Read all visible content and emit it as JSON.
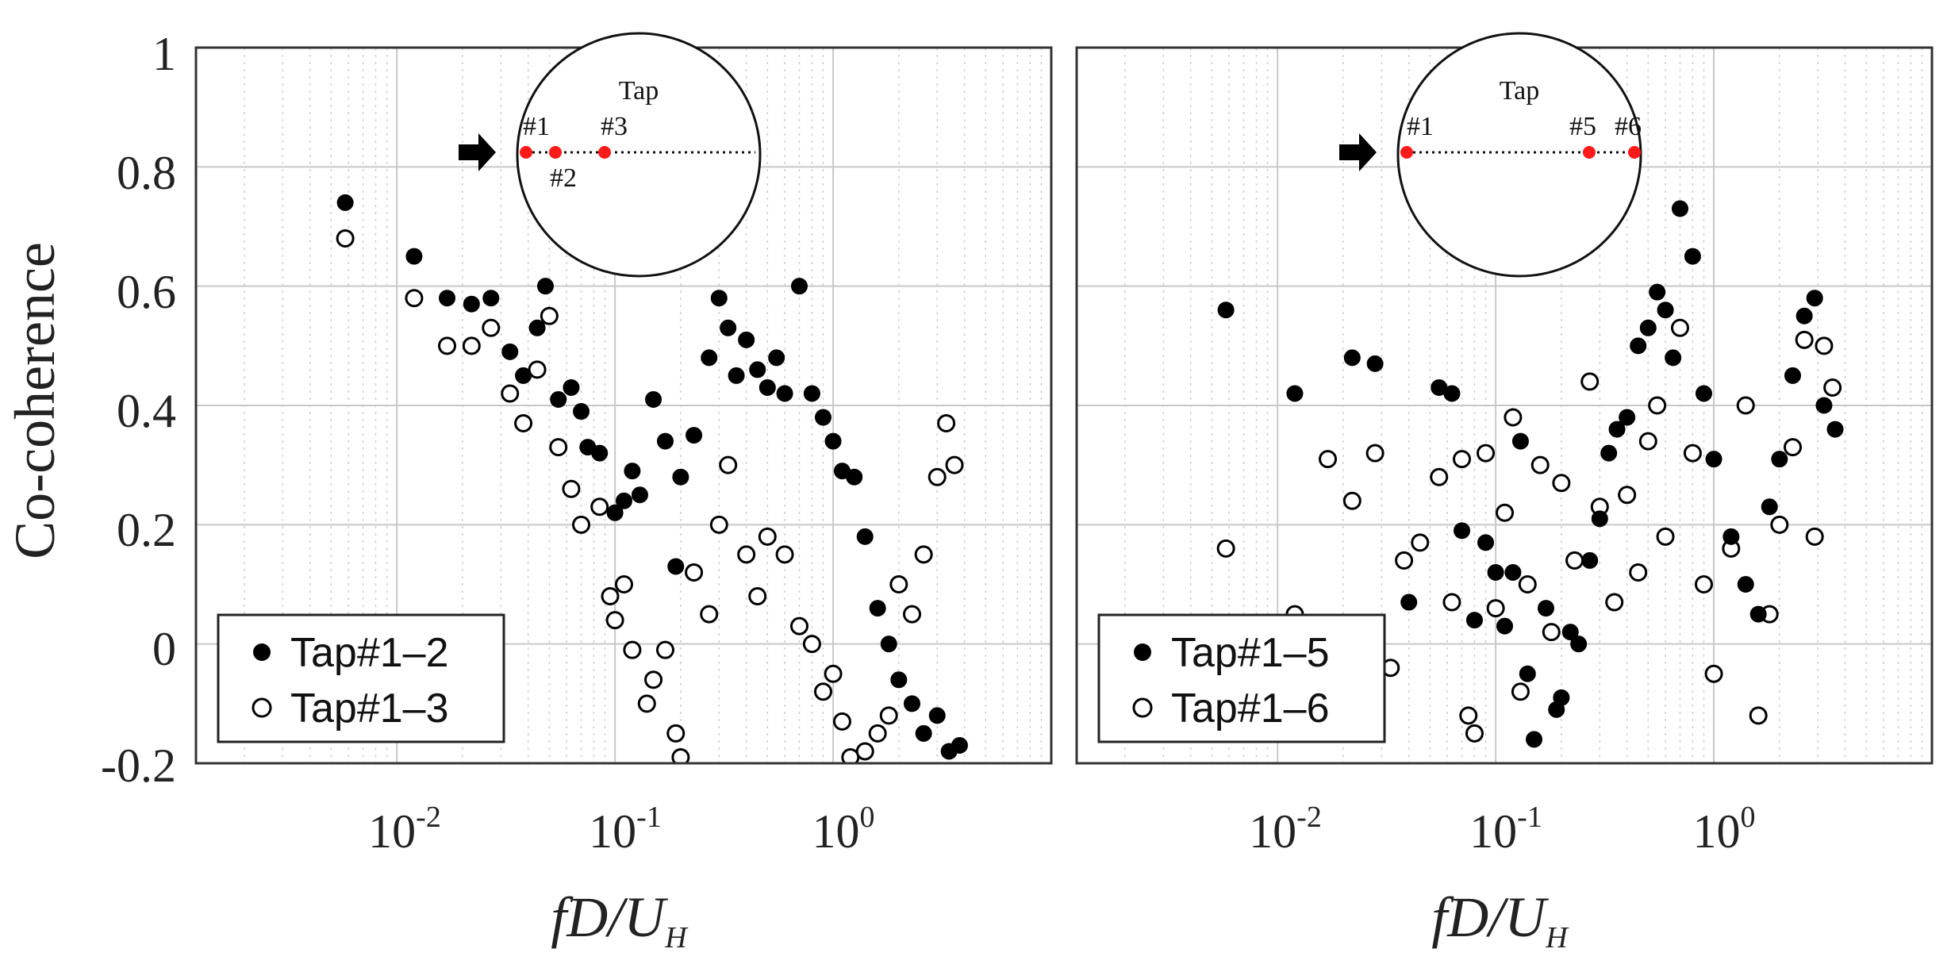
{
  "chart_data": [
    {
      "type": "scatter",
      "panel": "left",
      "xscale": "log",
      "xlim": [
        0.0012,
        10
      ],
      "ylim": [
        -0.2,
        1.0
      ],
      "ylabel": "Co-coherence",
      "xlabel": "fD/U",
      "xlabel_sub": "H",
      "yticks": [
        "1",
        "0.8",
        "0.6",
        "0.4",
        "0.2",
        "0",
        "-0.2"
      ],
      "xticks": [
        {
          "base": "10",
          "exp": "-2"
        },
        {
          "base": "10",
          "exp": "-1"
        },
        {
          "base": "10",
          "exp": "0"
        }
      ],
      "legend_position": "bottom-left",
      "series": [
        {
          "name": "Tap#1–2",
          "marker": "filled-circle",
          "x": [
            0.0058,
            0.012,
            0.017,
            0.022,
            0.027,
            0.033,
            0.038,
            0.044,
            0.048,
            0.055,
            0.063,
            0.07,
            0.075,
            0.085,
            0.1,
            0.11,
            0.12,
            0.13,
            0.15,
            0.17,
            0.19,
            0.2,
            0.23,
            0.27,
            0.3,
            0.33,
            0.36,
            0.4,
            0.45,
            0.5,
            0.55,
            0.6,
            0.7,
            0.8,
            0.9,
            1.0,
            1.1,
            1.25,
            1.4,
            1.6,
            1.8,
            2.0,
            2.3,
            2.6,
            3.0,
            3.4,
            3.8
          ],
          "y": [
            0.74,
            0.65,
            0.58,
            0.57,
            0.58,
            0.49,
            0.45,
            0.53,
            0.6,
            0.41,
            0.43,
            0.39,
            0.33,
            0.32,
            0.22,
            0.24,
            0.29,
            0.25,
            0.41,
            0.34,
            0.13,
            0.28,
            0.35,
            0.48,
            0.58,
            0.53,
            0.45,
            0.51,
            0.46,
            0.43,
            0.48,
            0.42,
            0.6,
            0.42,
            0.38,
            0.34,
            0.29,
            0.28,
            0.18,
            0.06,
            0.0,
            -0.06,
            -0.1,
            -0.15,
            -0.12,
            -0.18,
            -0.17
          ]
        },
        {
          "name": "Tap#1–3",
          "marker": "open-circle",
          "x": [
            0.0058,
            0.012,
            0.017,
            0.022,
            0.027,
            0.033,
            0.038,
            0.044,
            0.05,
            0.055,
            0.063,
            0.07,
            0.085,
            0.095,
            0.1,
            0.11,
            0.12,
            0.14,
            0.15,
            0.17,
            0.19,
            0.2,
            0.23,
            0.27,
            0.3,
            0.33,
            0.4,
            0.45,
            0.5,
            0.6,
            0.7,
            0.8,
            0.9,
            1.0,
            1.1,
            1.2,
            1.4,
            1.6,
            1.8,
            2.0,
            2.3,
            2.6,
            3.0,
            3.3,
            3.6
          ],
          "y": [
            0.68,
            0.58,
            0.5,
            0.5,
            0.53,
            0.42,
            0.37,
            0.46,
            0.55,
            0.33,
            0.26,
            0.2,
            0.23,
            0.08,
            0.04,
            0.1,
            -0.01,
            -0.1,
            -0.06,
            -0.01,
            -0.15,
            -0.19,
            0.12,
            0.05,
            0.2,
            0.3,
            0.15,
            0.08,
            0.18,
            0.15,
            0.03,
            0.0,
            -0.08,
            -0.05,
            -0.13,
            -0.19,
            -0.18,
            -0.15,
            -0.12,
            0.1,
            0.05,
            0.15,
            0.28,
            0.37,
            0.3
          ]
        }
      ],
      "inset": {
        "title": "Tap",
        "taps": [
          "#1",
          "#2",
          "#3"
        ]
      }
    },
    {
      "type": "scatter",
      "panel": "right",
      "xscale": "log",
      "xlim": [
        0.0012,
        10
      ],
      "ylim": [
        -0.2,
        1.0
      ],
      "xlabel": "fD/U",
      "xlabel_sub": "H",
      "xticks": [
        {
          "base": "10",
          "exp": "-2"
        },
        {
          "base": "10",
          "exp": "-1"
        },
        {
          "base": "10",
          "exp": "0"
        }
      ],
      "legend_position": "bottom-left",
      "series": [
        {
          "name": "Tap#1–5",
          "marker": "filled-circle",
          "x": [
            0.0058,
            0.012,
            0.022,
            0.028,
            0.04,
            0.055,
            0.063,
            0.07,
            0.08,
            0.09,
            0.1,
            0.11,
            0.12,
            0.13,
            0.14,
            0.15,
            0.17,
            0.19,
            0.2,
            0.22,
            0.24,
            0.27,
            0.3,
            0.33,
            0.36,
            0.4,
            0.45,
            0.5,
            0.55,
            0.6,
            0.65,
            0.7,
            0.8,
            0.9,
            1.0,
            1.2,
            1.4,
            1.6,
            1.8,
            2.0,
            2.3,
            2.6,
            2.9,
            3.2,
            3.6
          ],
          "y": [
            0.56,
            0.42,
            0.48,
            0.47,
            0.07,
            0.43,
            0.42,
            0.19,
            0.04,
            0.17,
            0.12,
            0.03,
            0.12,
            0.34,
            -0.05,
            -0.16,
            0.06,
            -0.11,
            -0.09,
            0.02,
            0.0,
            0.14,
            0.21,
            0.32,
            0.36,
            0.38,
            0.5,
            0.53,
            0.59,
            0.56,
            0.48,
            0.73,
            0.65,
            0.42,
            0.31,
            0.18,
            0.1,
            0.05,
            0.23,
            0.31,
            0.45,
            0.55,
            0.58,
            0.4,
            0.36
          ]
        },
        {
          "name": "Tap#1–6",
          "marker": "open-circle",
          "x": [
            0.0058,
            0.012,
            0.017,
            0.022,
            0.028,
            0.033,
            0.038,
            0.045,
            0.055,
            0.063,
            0.07,
            0.075,
            0.08,
            0.09,
            0.1,
            0.11,
            0.12,
            0.13,
            0.14,
            0.16,
            0.18,
            0.2,
            0.23,
            0.27,
            0.3,
            0.35,
            0.4,
            0.45,
            0.5,
            0.55,
            0.6,
            0.7,
            0.8,
            0.9,
            1.0,
            1.2,
            1.4,
            1.6,
            1.8,
            2.0,
            2.3,
            2.6,
            2.9,
            3.2,
            3.5
          ],
          "y": [
            0.16,
            0.05,
            0.31,
            0.24,
            0.32,
            -0.04,
            0.14,
            0.17,
            0.28,
            0.07,
            0.31,
            -0.12,
            -0.15,
            0.32,
            0.06,
            0.22,
            0.38,
            -0.08,
            0.1,
            0.3,
            0.02,
            0.27,
            0.14,
            0.44,
            0.23,
            0.07,
            0.25,
            0.12,
            0.34,
            0.4,
            0.18,
            0.53,
            0.32,
            0.1,
            -0.05,
            0.16,
            0.4,
            -0.12,
            0.05,
            0.2,
            0.33,
            0.51,
            0.18,
            0.5,
            0.43
          ]
        }
      ],
      "inset": {
        "title": "Tap",
        "taps": [
          "#1",
          "#5",
          "#6"
        ]
      }
    }
  ]
}
